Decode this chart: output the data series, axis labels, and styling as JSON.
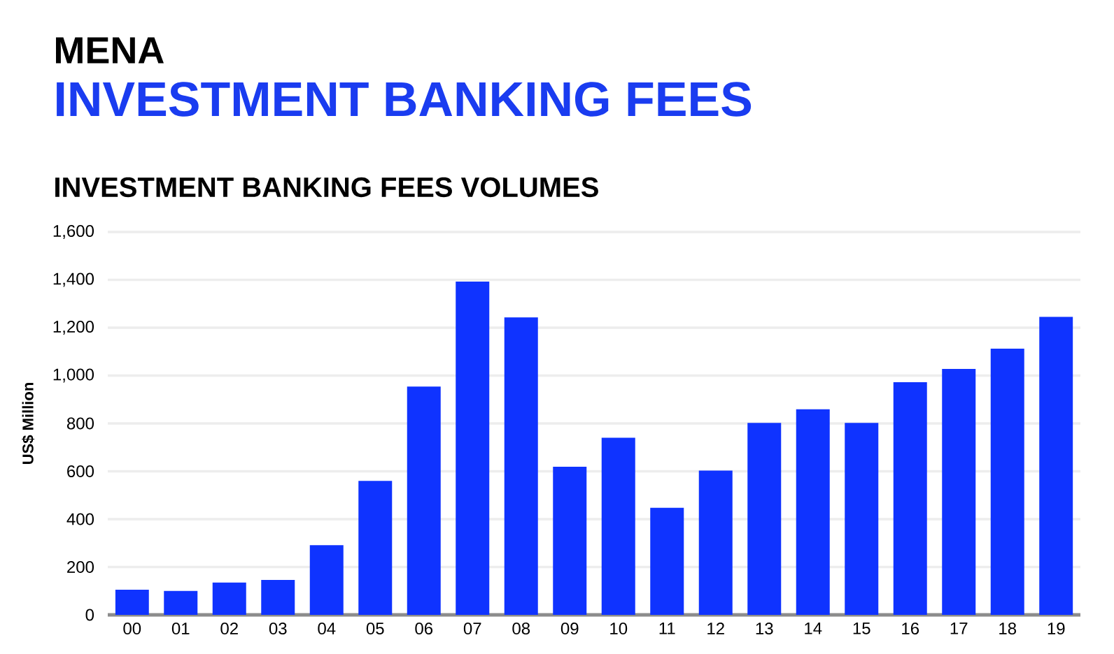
{
  "chart_data": {
    "type": "bar",
    "title": "MENA",
    "subtitle": "INVESTMENT BANKING FEES",
    "annotations": [
      "INVESTMENT BANKING FEES VOLUMES"
    ],
    "ylabel": "US$ Million",
    "categories": [
      "00",
      "01",
      "02",
      "03",
      "04",
      "05",
      "06",
      "07",
      "08",
      "09",
      "10",
      "11",
      "12",
      "13",
      "14",
      "15",
      "16",
      "17",
      "18",
      "19"
    ],
    "values": [
      105,
      100,
      135,
      146,
      291,
      560,
      954,
      1393,
      1243,
      619,
      740,
      447,
      603,
      802,
      859,
      802,
      972,
      1028,
      1112,
      1245
    ],
    "color": "#0f33ff",
    "ylim": [
      0,
      1600
    ],
    "yticks": [
      0,
      200,
      400,
      600,
      800,
      {
        "value": 1000,
        "label": "1,000"
      },
      {
        "value": 1200,
        "label": "1,200"
      },
      {
        "value": 1400,
        "label": "1,400"
      },
      {
        "value": 1600,
        "label": "1,600"
      }
    ],
    "grid": "y"
  }
}
